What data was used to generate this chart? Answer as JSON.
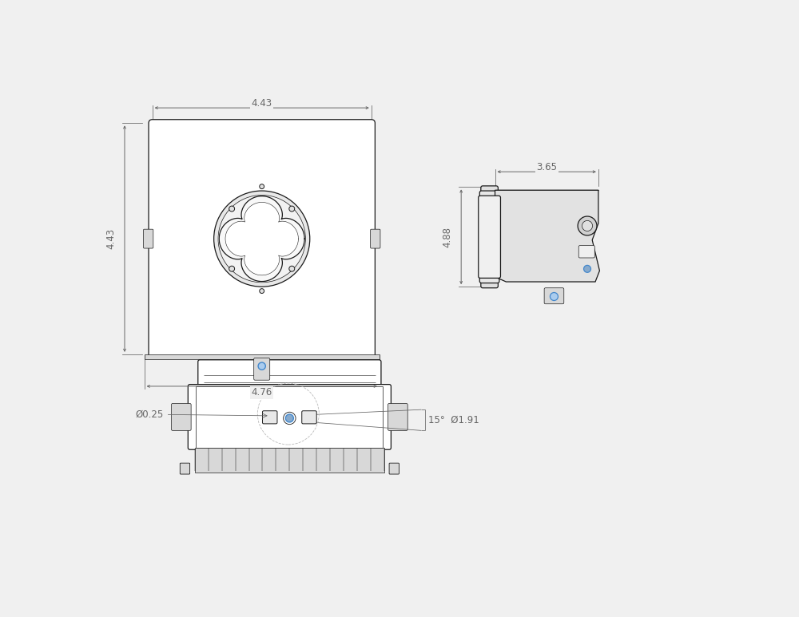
{
  "bg_color": "#f0f0f0",
  "line_color": "#1a1a1a",
  "dim_line_color": "#666666",
  "blue_color": "#4488cc",
  "white": "#ffffff",
  "gray_light": "#d8d8d8",
  "gray_mid": "#aaaaaa",
  "gray_dark": "#888888",
  "dim_font_size": 8.5,
  "dims": {
    "front_width_top": "4.43",
    "front_height": "4.43",
    "front_width_bottom": "4.76",
    "side_width": "3.65",
    "side_height": "4.88",
    "bottom_diameter": "Ø0.25",
    "bottom_angle_dim": "15°  Ø1.91"
  }
}
